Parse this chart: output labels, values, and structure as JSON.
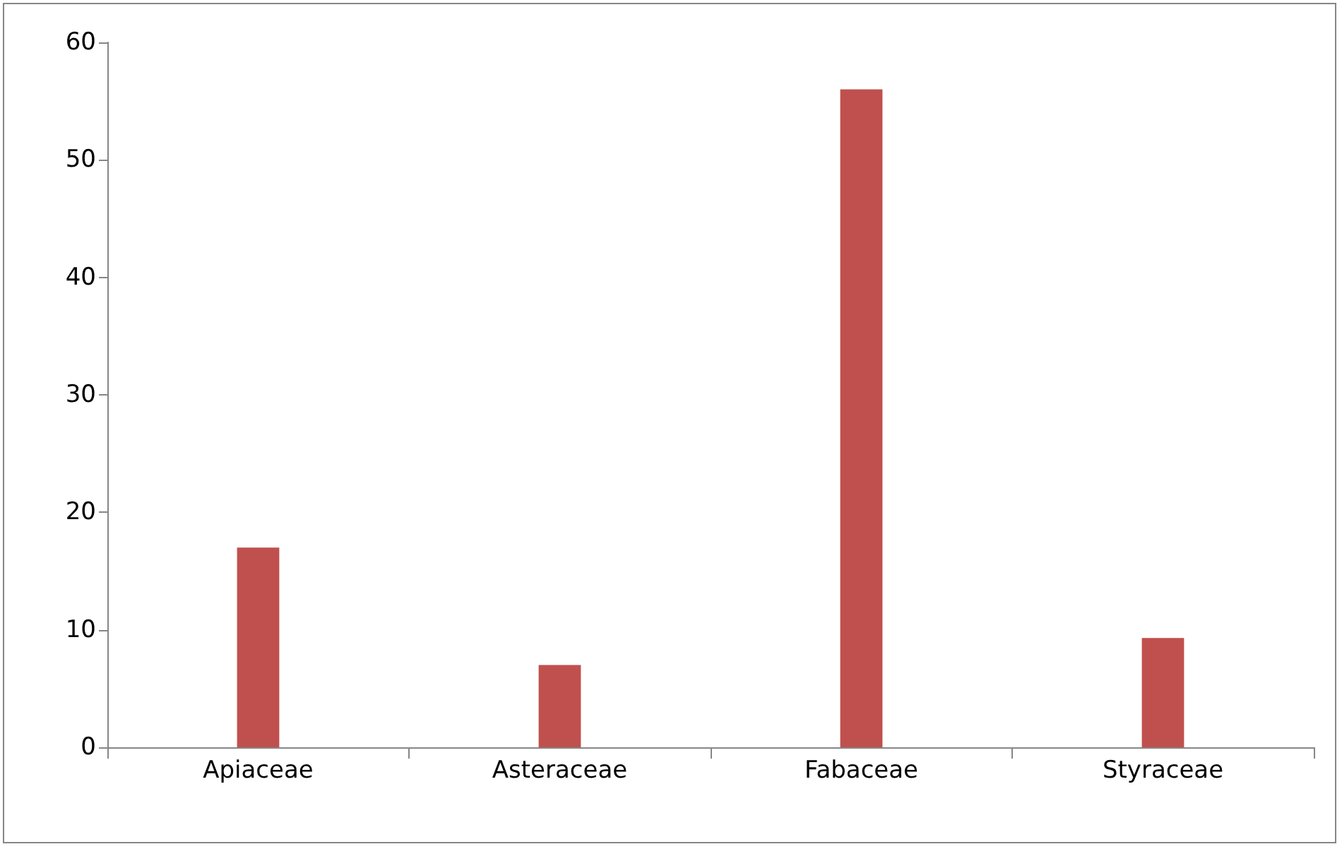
{
  "chart_data": {
    "type": "bar",
    "categories": [
      "Apiaceae",
      "Asteraceae",
      "Fabaceae",
      "Styraceae"
    ],
    "values": [
      17,
      7,
      56,
      9.3
    ],
    "color": "#c0504d",
    "ylim": [
      0,
      60
    ],
    "yticks": [
      0,
      10,
      20,
      30,
      40,
      50,
      60
    ]
  }
}
